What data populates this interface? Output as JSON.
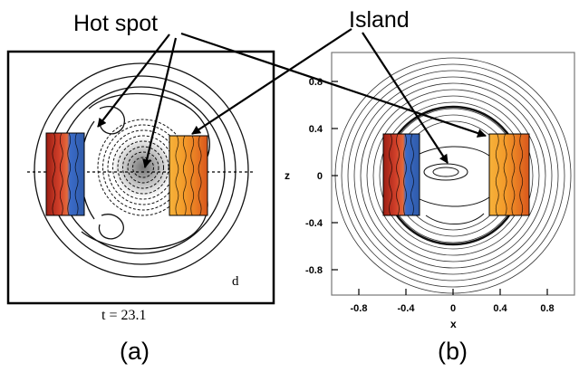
{
  "callouts": {
    "hot_spot": "Hot spot",
    "island": "Island"
  },
  "panel_a": {
    "label": "(a)",
    "time": "t = 23.1",
    "corner_letter": "d"
  },
  "panel_b": {
    "label": "(b)",
    "xlabel": "x",
    "ylabel": "z",
    "xticks": [
      "-0.8",
      "-0.4",
      "0",
      "0.4",
      "0.8"
    ],
    "zticks": [
      "0.8",
      "0.4",
      "0",
      "-0.4",
      "-0.8"
    ]
  },
  "colors": {
    "red": "#c0281e",
    "blue": "#3b6cc9",
    "orange": "#f39a2a",
    "yellow": "#f7c948",
    "ink": "#000000"
  }
}
